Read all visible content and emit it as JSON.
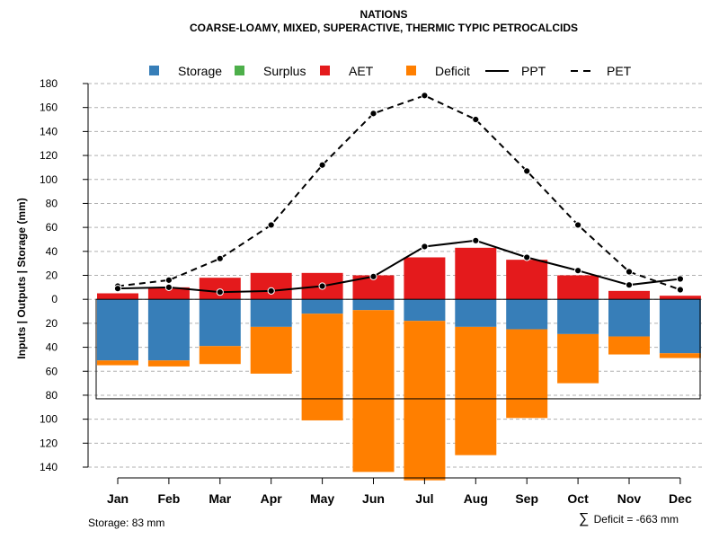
{
  "chart_data": {
    "type": "bar",
    "title": "NATIONS",
    "subtitle": "COARSE-LOAMY, MIXED, SUPERACTIVE, THERMIC TYPIC PETROCALCIDS",
    "ylabel": "Inputs | Outputs | Storage    (mm)",
    "ylim": [
      -140,
      180
    ],
    "yticks": [
      180,
      160,
      140,
      120,
      100,
      80,
      60,
      40,
      20,
      0,
      -20,
      -40,
      -60,
      -80,
      -100,
      -120,
      -140
    ],
    "ytick_labels": [
      "180",
      "160",
      "140",
      "120",
      "100",
      "80",
      "60",
      "40",
      "20",
      "0",
      "20",
      "40",
      "60",
      "80",
      "100",
      "120",
      "140"
    ],
    "grid": true,
    "categories": [
      "Jan",
      "Feb",
      "Mar",
      "Apr",
      "May",
      "Jun",
      "Jul",
      "Aug",
      "Sep",
      "Oct",
      "Nov",
      "Dec"
    ],
    "series": [
      {
        "name": "AET",
        "color": "#E41A1C",
        "values": [
          5,
          10,
          18,
          22,
          22,
          20,
          35,
          43,
          33,
          20,
          7,
          3
        ]
      },
      {
        "name": "Storage",
        "color": "#377EB8",
        "values": [
          -51,
          -51,
          -39,
          -23,
          -12,
          -9,
          -18,
          -23,
          -25,
          -29,
          -31,
          -45
        ]
      },
      {
        "name": "Deficit",
        "color": "#FF7F00",
        "values": [
          -4,
          -5,
          -15,
          -39,
          -89,
          -135,
          -133,
          -107,
          -74,
          -41,
          -15,
          -4
        ]
      },
      {
        "name": "Surplus",
        "color": "#4DAF4A",
        "values": [
          0,
          0,
          0,
          0,
          0,
          0,
          0,
          0,
          0,
          0,
          0,
          0
        ]
      },
      {
        "name": "PPT",
        "color": "#000000",
        "style": "solid",
        "values": [
          9,
          10,
          6,
          7,
          11,
          19,
          44,
          49,
          35,
          24,
          12,
          17
        ]
      },
      {
        "name": "PET",
        "color": "#000000",
        "style": "dashed",
        "values": [
          11,
          16,
          34,
          62,
          112,
          155,
          170,
          150,
          107,
          62,
          23,
          8
        ]
      }
    ],
    "storage_capacity": 83,
    "legend": [
      {
        "label": "Storage",
        "color": "#377EB8",
        "kind": "square"
      },
      {
        "label": "Surplus",
        "color": "#4DAF4A",
        "kind": "square"
      },
      {
        "label": "AET",
        "color": "#E41A1C",
        "kind": "square"
      },
      {
        "label": "Deficit",
        "color": "#FF7F00",
        "kind": "square"
      },
      {
        "label": "PPT",
        "color": "#000000",
        "kind": "solid"
      },
      {
        "label": "PET",
        "color": "#000000",
        "kind": "dashed"
      }
    ],
    "legend_position": "top"
  },
  "footer": {
    "storage_text": "Storage: 83 mm",
    "deficit_symbol": "∑",
    "deficit_text": "Deficit = -663 mm"
  }
}
